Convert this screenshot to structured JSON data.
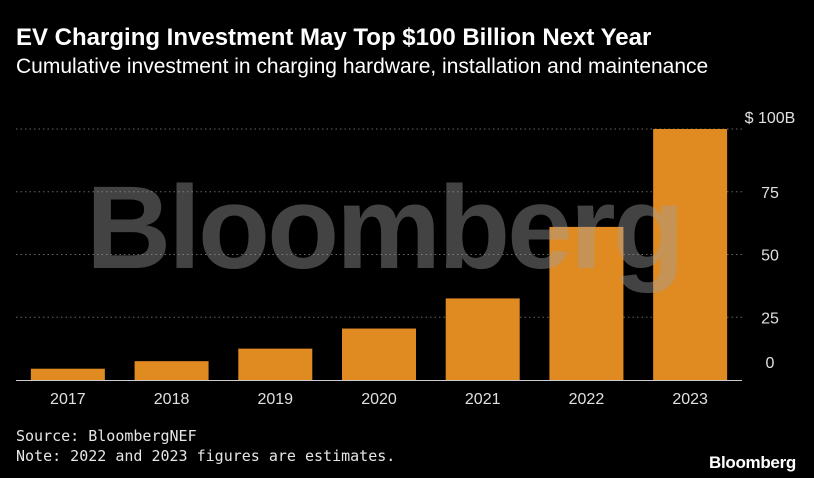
{
  "header": {
    "title": "EV Charging Investment May Top $100 Billion Next Year",
    "subtitle": "Cumulative investment in charging hardware, installation and maintenance"
  },
  "footer": {
    "source": "Source: BloombergNEF",
    "note": "Note: 2022 and 2023 figures are estimates.",
    "logo": "Bloomberg"
  },
  "watermark": "Bloomberg",
  "colors": {
    "bar": "#E08A22",
    "background": "#000000",
    "grid": "#666666",
    "text": "#FFFFFF"
  },
  "chart_data": {
    "type": "bar",
    "categories": [
      "2017",
      "2018",
      "2019",
      "2020",
      "2021",
      "2022",
      "2023"
    ],
    "values": [
      4.5,
      7.5,
      12.5,
      20.5,
      32.5,
      61,
      100
    ],
    "ylim": [
      0,
      100
    ],
    "yticks": [
      0,
      25,
      50,
      75,
      100
    ],
    "ytick_labels": [
      "0",
      "25",
      "50",
      "75",
      "$ 100B"
    ],
    "y_axis_position": "right",
    "grid": true
  }
}
